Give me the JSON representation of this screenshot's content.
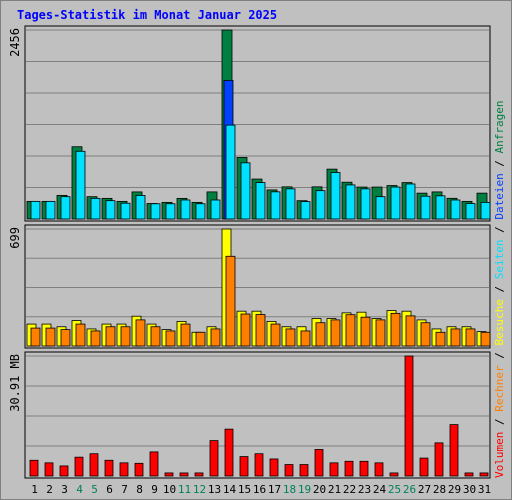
{
  "chart_data": {
    "type": "bar",
    "title": "Tages-Statistik im Monat Januar 2025",
    "categories": [
      "1",
      "2",
      "3",
      "4",
      "5",
      "6",
      "7",
      "8",
      "9",
      "10",
      "11",
      "12",
      "13",
      "14",
      "15",
      "16",
      "17",
      "18",
      "19",
      "20",
      "21",
      "22",
      "23",
      "24",
      "25",
      "26",
      "27",
      "28",
      "29",
      "30",
      "31"
    ],
    "weekend_days": [
      "4",
      "5",
      "11",
      "12",
      "18",
      "19",
      "25",
      "26"
    ],
    "colors": {
      "anfragen": "#008040",
      "dateien": "#0040ff",
      "seiten": "#00e0ff",
      "besuche": "#ffff00",
      "rechner": "#ff8000",
      "volumen": "#ff0000",
      "weekend_label": "#00805c",
      "title": "#0000ff",
      "background": "#c0c0c0"
    },
    "panels": [
      {
        "id": "anfragen",
        "ymax_label": "2456",
        "ylim": [
          0,
          2456
        ],
        "series": [
          {
            "name": "Anfragen",
            "color": "#008040",
            "values": [
              229,
              229,
              307,
              939,
              290,
              268,
              229,
              352,
              201,
              216,
              268,
              216,
              352,
              2456,
              800,
              519,
              378,
              418,
              238,
              418,
              648,
              478,
              415,
              415,
              435,
              473,
              336,
              352,
              269,
              229,
              336
            ]
          },
          {
            "name": "Dateien",
            "color": "#0040ff",
            "values": [
              0,
              0,
              0,
              0,
              0,
              0,
              0,
              0,
              0,
              0,
              0,
              0,
              0,
              1800,
              0,
              0,
              0,
              0,
              0,
              0,
              0,
              0,
              0,
              0,
              0,
              0,
              0,
              0,
              0,
              0,
              0
            ]
          },
          {
            "name": "Seiten",
            "color": "#00e0ff",
            "values": [
              229,
              229,
              290,
              880,
              268,
              238,
              205,
              306,
              198,
              198,
              247,
              198,
              247,
              1220,
              730,
              473,
              353,
              392,
              226,
              368,
              604,
              443,
              392,
              290,
              415,
              455,
              296,
              301,
              247,
              201,
              216
            ]
          }
        ]
      },
      {
        "id": "besuche",
        "ymax_label": "699",
        "ylim": [
          0,
          699
        ],
        "series": [
          {
            "name": "Besuche",
            "color": "#ffff00",
            "values": [
              131,
              131,
              115,
              152,
              102,
              131,
              131,
              178,
              131,
              98,
              147,
              82,
              115,
              699,
              208,
              208,
              147,
              115,
              115,
              164,
              164,
              198,
              202,
              164,
              212,
              208,
              156,
              102,
              115,
              115,
              86
            ]
          },
          {
            "name": "Rechner",
            "color": "#ff8000",
            "values": [
              107,
              107,
              98,
              131,
              90,
              115,
              115,
              156,
              115,
              90,
              131,
              82,
              102,
              536,
              191,
              188,
              131,
              102,
              90,
              139,
              156,
              187,
              172,
              156,
              195,
              180,
              139,
              82,
              102,
              102,
              82
            ]
          }
        ]
      },
      {
        "id": "volumen",
        "ymax_label": "30.91 MB",
        "ylim": [
          0,
          30.91
        ],
        "series": [
          {
            "name": "Volumen",
            "color": "#ff0000",
            "values": [
              4.05,
              3.39,
              2.59,
              4.85,
              5.74,
              4.05,
              3.39,
              3.27,
              6.21,
              0.79,
              0.79,
              0.79,
              9.12,
              12.07,
              5.0,
              5.74,
              4.39,
              2.95,
              2.95,
              6.84,
              3.39,
              3.79,
              3.79,
              3.39,
              0.79,
              30.91,
              4.62,
              8.54,
              13.24,
              0.79,
              0.79
            ]
          }
        ]
      }
    ],
    "right_legend": {
      "top": [
        {
          "text": "Anfragen",
          "color": "#008040"
        },
        {
          "text": "Dateien",
          "color": "#0040ff"
        },
        {
          "text": "Seiten",
          "color": "#00e0ff"
        },
        {
          "text": "Besuche",
          "color": "#ffff00"
        },
        {
          "text": "Rechner",
          "color": "#ff8000"
        },
        {
          "text": "Volumen",
          "color": "#ff0000"
        }
      ],
      "separator": " / "
    }
  }
}
